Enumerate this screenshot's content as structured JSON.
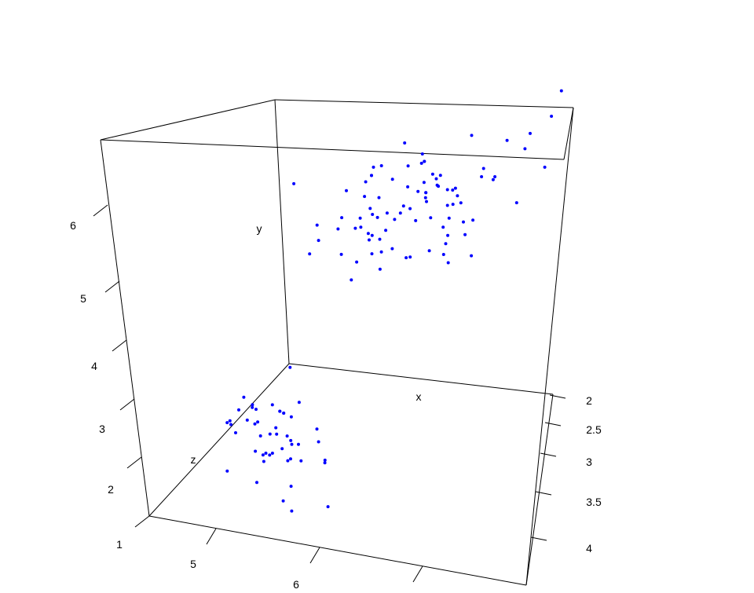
{
  "chart_data": {
    "type": "scatter",
    "projection": "3d-perspective-box",
    "point_color": "#0000ff",
    "axes": {
      "x": {
        "label": "x",
        "ticks": [
          "2",
          "2.5",
          "3",
          "3.5",
          "4"
        ]
      },
      "y": {
        "label": "y",
        "ticks": [
          "5",
          "6"
        ]
      },
      "z": {
        "label": "z",
        "ticks": [
          "1",
          "2",
          "3",
          "4",
          "5",
          "6"
        ]
      }
    },
    "clusters": [
      {
        "description_of_group": "lower cluster",
        "points": [
          [
            3.3,
            4.5,
            1.4
          ],
          [
            3.2,
            4.7,
            1.4
          ],
          [
            3.1,
            4.6,
            1.5
          ],
          [
            3.6,
            5.0,
            1.4
          ],
          [
            3.9,
            5.4,
            1.7
          ],
          [
            3.4,
            4.6,
            1.4
          ],
          [
            3.4,
            5.0,
            1.5
          ],
          [
            2.9,
            4.4,
            1.4
          ],
          [
            3.1,
            4.9,
            1.5
          ],
          [
            3.7,
            5.4,
            1.5
          ],
          [
            3.4,
            4.8,
            1.6
          ],
          [
            3.0,
            4.8,
            1.4
          ],
          [
            3.0,
            4.3,
            1.1
          ],
          [
            4.0,
            5.8,
            1.2
          ],
          [
            4.4,
            5.7,
            1.5
          ],
          [
            3.9,
            5.4,
            1.3
          ],
          [
            3.5,
            5.1,
            1.4
          ],
          [
            3.8,
            5.7,
            1.7
          ],
          [
            3.8,
            5.1,
            1.5
          ],
          [
            3.4,
            5.4,
            1.7
          ],
          [
            3.7,
            5.1,
            1.5
          ],
          [
            3.6,
            4.6,
            1.0
          ],
          [
            3.3,
            5.1,
            1.7
          ],
          [
            3.4,
            4.8,
            1.9
          ],
          [
            3.0,
            5.0,
            1.6
          ],
          [
            3.4,
            5.0,
            1.6
          ],
          [
            3.5,
            5.2,
            1.5
          ],
          [
            3.4,
            5.2,
            1.4
          ],
          [
            3.2,
            4.7,
            1.6
          ],
          [
            3.1,
            4.8,
            1.6
          ],
          [
            3.4,
            5.4,
            1.5
          ],
          [
            4.1,
            5.2,
            1.5
          ],
          [
            4.2,
            5.5,
            1.4
          ],
          [
            3.1,
            4.9,
            1.5
          ],
          [
            3.2,
            5.0,
            1.2
          ],
          [
            3.5,
            5.5,
            1.3
          ],
          [
            3.6,
            4.9,
            1.4
          ],
          [
            3.0,
            4.4,
            1.3
          ],
          [
            3.4,
            5.1,
            1.5
          ],
          [
            3.5,
            5.0,
            1.3
          ],
          [
            2.3,
            4.5,
            1.3
          ],
          [
            3.2,
            4.4,
            1.3
          ],
          [
            3.5,
            5.0,
            1.6
          ],
          [
            3.8,
            5.1,
            1.9
          ],
          [
            3.0,
            4.8,
            1.4
          ],
          [
            3.8,
            5.1,
            1.6
          ],
          [
            3.2,
            4.6,
            1.4
          ],
          [
            3.7,
            5.3,
            1.5
          ]
        ]
      },
      {
        "description_of_group": "upper cluster",
        "points": [
          [
            3.2,
            7.0,
            4.7
          ],
          [
            3.2,
            6.4,
            4.5
          ],
          [
            3.1,
            6.9,
            4.9
          ],
          [
            2.3,
            5.5,
            4.0
          ],
          [
            2.8,
            6.5,
            4.6
          ],
          [
            2.8,
            5.7,
            4.5
          ],
          [
            3.3,
            6.3,
            4.7
          ],
          [
            2.4,
            4.9,
            3.3
          ],
          [
            2.9,
            6.6,
            4.6
          ],
          [
            2.7,
            5.2,
            3.9
          ],
          [
            2.0,
            5.0,
            3.5
          ],
          [
            3.0,
            5.9,
            4.2
          ],
          [
            2.2,
            6.0,
            4.0
          ],
          [
            2.9,
            6.1,
            4.7
          ],
          [
            2.9,
            5.6,
            3.6
          ],
          [
            3.1,
            6.7,
            4.4
          ],
          [
            3.0,
            5.6,
            4.5
          ],
          [
            2.7,
            5.8,
            4.1
          ],
          [
            2.2,
            6.2,
            4.5
          ],
          [
            2.5,
            5.6,
            3.9
          ],
          [
            3.2,
            5.9,
            4.8
          ],
          [
            2.8,
            6.1,
            4.0
          ],
          [
            2.5,
            6.3,
            4.9
          ],
          [
            2.8,
            6.1,
            4.7
          ],
          [
            2.9,
            6.4,
            4.3
          ],
          [
            3.0,
            6.6,
            4.4
          ],
          [
            2.8,
            6.8,
            4.8
          ],
          [
            3.0,
            6.7,
            5.0
          ],
          [
            2.9,
            6.0,
            4.5
          ],
          [
            2.6,
            5.7,
            3.5
          ],
          [
            2.4,
            5.5,
            3.8
          ],
          [
            2.4,
            5.5,
            3.7
          ],
          [
            2.7,
            5.8,
            3.9
          ],
          [
            2.7,
            6.0,
            5.1
          ],
          [
            3.0,
            5.4,
            4.5
          ],
          [
            3.4,
            6.0,
            4.5
          ],
          [
            3.1,
            6.7,
            4.7
          ],
          [
            2.3,
            6.3,
            4.4
          ],
          [
            3.0,
            5.6,
            4.1
          ],
          [
            2.5,
            5.5,
            4.0
          ],
          [
            3.3,
            6.3,
            6.0
          ],
          [
            2.7,
            5.8,
            5.1
          ],
          [
            3.0,
            7.1,
            5.9
          ],
          [
            2.9,
            6.3,
            5.6
          ],
          [
            3.0,
            6.5,
            5.8
          ],
          [
            3.0,
            7.6,
            6.6
          ],
          [
            2.5,
            4.9,
            4.5
          ],
          [
            2.9,
            7.3,
            6.3
          ],
          [
            2.5,
            6.7,
            5.8
          ],
          [
            3.6,
            7.2,
            6.1
          ],
          [
            3.2,
            6.5,
            5.1
          ],
          [
            2.7,
            6.4,
            5.3
          ],
          [
            3.0,
            6.8,
            5.5
          ],
          [
            2.5,
            5.7,
            5.0
          ],
          [
            2.8,
            5.8,
            5.1
          ],
          [
            3.2,
            6.4,
            5.3
          ],
          [
            3.0,
            6.5,
            5.5
          ],
          [
            3.8,
            7.7,
            6.7
          ],
          [
            2.6,
            7.7,
            6.9
          ],
          [
            2.2,
            6.0,
            5.0
          ],
          [
            3.2,
            6.9,
            5.7
          ],
          [
            2.8,
            5.6,
            4.9
          ],
          [
            2.8,
            7.7,
            6.7
          ],
          [
            2.7,
            6.3,
            4.9
          ],
          [
            3.3,
            6.7,
            5.7
          ],
          [
            3.2,
            7.2,
            6.0
          ],
          [
            2.8,
            6.2,
            4.8
          ],
          [
            3.0,
            6.1,
            4.9
          ],
          [
            2.8,
            6.4,
            5.6
          ],
          [
            3.0,
            7.2,
            5.8
          ],
          [
            2.8,
            7.4,
            6.1
          ],
          [
            3.8,
            7.9,
            6.4
          ],
          [
            2.8,
            6.4,
            5.6
          ],
          [
            2.8,
            6.3,
            5.1
          ],
          [
            2.6,
            6.1,
            5.6
          ],
          [
            3.0,
            7.7,
            6.1
          ],
          [
            3.4,
            6.3,
            5.6
          ],
          [
            3.1,
            6.4,
            5.5
          ],
          [
            3.0,
            6.0,
            4.8
          ],
          [
            3.1,
            6.9,
            5.4
          ],
          [
            3.1,
            6.7,
            5.6
          ],
          [
            3.1,
            6.9,
            5.1
          ],
          [
            2.7,
            5.8,
            5.1
          ],
          [
            3.2,
            6.8,
            5.9
          ],
          [
            3.3,
            6.7,
            5.7
          ],
          [
            3.0,
            6.7,
            5.2
          ],
          [
            2.5,
            6.3,
            5.0
          ],
          [
            3.0,
            6.5,
            5.2
          ],
          [
            3.4,
            6.2,
            5.4
          ],
          [
            3.0,
            5.9,
            5.1
          ]
        ]
      }
    ]
  }
}
